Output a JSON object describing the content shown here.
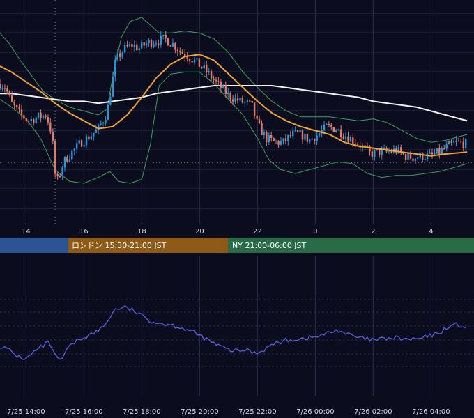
{
  "colors": {
    "background": "#0b0d1f",
    "grid": "#2a2e48",
    "candle_up": "#2f93d8",
    "candle_down": "#e07c68",
    "bollinger": "#3d9f5d",
    "ma_short": "#f0a236",
    "ma_long": "#f2f2f2",
    "oscillator": "#5b61e0",
    "session_tokyo": "#2a5590",
    "session_london": "#8d5a18",
    "session_ny": "#2a6b47",
    "axis_text": "#d6d8e4"
  },
  "icons": [],
  "chart_data": [
    {
      "type": "candlestick",
      "title": "",
      "xlabel": "",
      "ylabel": "",
      "x_tick_labels": [
        "14",
        "16",
        "18",
        "20",
        "22",
        "0",
        "2",
        "4"
      ],
      "x_range_hours": [
        13.1,
        5.25
      ],
      "grid": true,
      "dotted_reference_line": true,
      "close_path_points": [
        [
          13.1,
          0.66
        ],
        [
          13.3,
          0.64
        ],
        [
          13.5,
          0.56
        ],
        [
          13.8,
          0.5
        ],
        [
          14.1,
          0.47
        ],
        [
          14.4,
          0.49
        ],
        [
          14.7,
          0.5
        ],
        [
          14.9,
          0.4
        ],
        [
          15.0,
          0.2
        ],
        [
          15.1,
          0.16
        ],
        [
          15.3,
          0.26
        ],
        [
          15.6,
          0.31
        ],
        [
          15.9,
          0.36
        ],
        [
          16.2,
          0.39
        ],
        [
          16.5,
          0.43
        ],
        [
          16.8,
          0.51
        ],
        [
          16.95,
          0.64
        ],
        [
          17.1,
          0.78
        ],
        [
          17.4,
          0.84
        ],
        [
          17.7,
          0.86
        ],
        [
          17.9,
          0.84
        ],
        [
          18.2,
          0.87
        ],
        [
          18.5,
          0.88
        ],
        [
          18.8,
          0.89
        ],
        [
          19.1,
          0.86
        ],
        [
          19.4,
          0.82
        ],
        [
          19.8,
          0.78
        ],
        [
          20.2,
          0.73
        ],
        [
          20.6,
          0.66
        ],
        [
          21.0,
          0.6
        ],
        [
          21.4,
          0.57
        ],
        [
          21.8,
          0.55
        ],
        [
          22.0,
          0.45
        ],
        [
          22.3,
          0.38
        ],
        [
          22.6,
          0.36
        ],
        [
          22.9,
          0.36
        ],
        [
          23.2,
          0.4
        ],
        [
          23.5,
          0.4
        ],
        [
          23.8,
          0.37
        ],
        [
          0.1,
          0.4
        ],
        [
          0.4,
          0.44
        ],
        [
          0.7,
          0.43
        ],
        [
          1.0,
          0.4
        ],
        [
          1.3,
          0.37
        ],
        [
          1.6,
          0.34
        ],
        [
          1.9,
          0.3
        ],
        [
          2.2,
          0.31
        ],
        [
          2.5,
          0.31
        ],
        [
          2.8,
          0.32
        ],
        [
          3.1,
          0.29
        ],
        [
          3.4,
          0.28
        ],
        [
          3.7,
          0.29
        ],
        [
          4.0,
          0.29
        ],
        [
          4.3,
          0.31
        ],
        [
          4.6,
          0.34
        ],
        [
          4.9,
          0.36
        ],
        [
          5.25,
          0.35
        ]
      ],
      "ma_short_points": [
        [
          13.1,
          0.75
        ],
        [
          13.5,
          0.72
        ],
        [
          14.0,
          0.67
        ],
        [
          14.5,
          0.62
        ],
        [
          15.0,
          0.56
        ],
        [
          15.5,
          0.51
        ],
        [
          16.0,
          0.47
        ],
        [
          16.5,
          0.43
        ],
        [
          17.0,
          0.44
        ],
        [
          17.5,
          0.5
        ],
        [
          18.0,
          0.59
        ],
        [
          18.5,
          0.69
        ],
        [
          19.0,
          0.76
        ],
        [
          19.5,
          0.8
        ],
        [
          20.0,
          0.81
        ],
        [
          20.5,
          0.78
        ],
        [
          21.0,
          0.71
        ],
        [
          21.5,
          0.64
        ],
        [
          22.0,
          0.57
        ],
        [
          22.5,
          0.51
        ],
        [
          23.0,
          0.47
        ],
        [
          23.5,
          0.44
        ],
        [
          0.0,
          0.42
        ],
        [
          0.5,
          0.4
        ],
        [
          1.0,
          0.36
        ],
        [
          1.5,
          0.34
        ],
        [
          2.0,
          0.33
        ],
        [
          2.5,
          0.32
        ],
        [
          3.0,
          0.31
        ],
        [
          3.5,
          0.3
        ],
        [
          4.0,
          0.29
        ],
        [
          4.5,
          0.3
        ],
        [
          5.25,
          0.31
        ]
      ],
      "ma_long_points": [
        [
          13.1,
          0.61
        ],
        [
          13.5,
          0.61
        ],
        [
          14.0,
          0.6
        ],
        [
          14.5,
          0.59
        ],
        [
          15.0,
          0.58
        ],
        [
          15.5,
          0.57
        ],
        [
          16.0,
          0.57
        ],
        [
          16.5,
          0.56
        ],
        [
          17.0,
          0.57
        ],
        [
          17.5,
          0.58
        ],
        [
          18.0,
          0.59
        ],
        [
          18.5,
          0.61
        ],
        [
          19.0,
          0.62
        ],
        [
          19.5,
          0.63
        ],
        [
          20.0,
          0.64
        ],
        [
          20.5,
          0.65
        ],
        [
          21.0,
          0.65
        ],
        [
          21.5,
          0.65
        ],
        [
          22.0,
          0.65
        ],
        [
          22.5,
          0.65
        ],
        [
          23.0,
          0.64
        ],
        [
          23.5,
          0.63
        ],
        [
          0.0,
          0.62
        ],
        [
          0.5,
          0.61
        ],
        [
          1.0,
          0.6
        ],
        [
          1.5,
          0.59
        ],
        [
          2.0,
          0.57
        ],
        [
          2.5,
          0.56
        ],
        [
          3.0,
          0.55
        ],
        [
          3.5,
          0.54
        ],
        [
          4.0,
          0.52
        ],
        [
          4.5,
          0.5
        ],
        [
          5.25,
          0.47
        ]
      ],
      "boll_upper_points": [
        [
          13.1,
          0.92
        ],
        [
          13.4,
          0.87
        ],
        [
          13.8,
          0.78
        ],
        [
          14.2,
          0.7
        ],
        [
          14.6,
          0.62
        ],
        [
          15.0,
          0.58
        ],
        [
          15.5,
          0.54
        ],
        [
          16.0,
          0.52
        ],
        [
          16.5,
          0.5
        ],
        [
          16.8,
          0.53
        ],
        [
          17.0,
          0.7
        ],
        [
          17.3,
          0.9
        ],
        [
          17.6,
          0.98
        ],
        [
          18.0,
          1.0
        ],
        [
          18.3,
          0.96
        ],
        [
          18.6,
          0.92
        ],
        [
          19.0,
          0.92
        ],
        [
          19.5,
          0.93
        ],
        [
          20.0,
          0.92
        ],
        [
          20.5,
          0.89
        ],
        [
          21.0,
          0.82
        ],
        [
          21.5,
          0.72
        ],
        [
          22.0,
          0.64
        ],
        [
          22.5,
          0.57
        ],
        [
          23.0,
          0.52
        ],
        [
          23.5,
          0.49
        ],
        [
          0.0,
          0.49
        ],
        [
          0.5,
          0.49
        ],
        [
          1.0,
          0.48
        ],
        [
          1.5,
          0.47
        ],
        [
          2.0,
          0.48
        ],
        [
          2.5,
          0.46
        ],
        [
          3.0,
          0.42
        ],
        [
          3.5,
          0.38
        ],
        [
          4.0,
          0.36
        ],
        [
          4.5,
          0.37
        ],
        [
          5.25,
          0.4
        ]
      ],
      "boll_lower_points": [
        [
          13.1,
          0.58
        ],
        [
          13.5,
          0.54
        ],
        [
          14.0,
          0.48
        ],
        [
          14.5,
          0.38
        ],
        [
          15.0,
          0.22
        ],
        [
          15.5,
          0.16
        ],
        [
          16.0,
          0.15
        ],
        [
          16.5,
          0.18
        ],
        [
          16.9,
          0.21
        ],
        [
          17.2,
          0.16
        ],
        [
          17.6,
          0.15
        ],
        [
          18.0,
          0.17
        ],
        [
          18.3,
          0.35
        ],
        [
          18.6,
          0.65
        ],
        [
          19.0,
          0.71
        ],
        [
          19.5,
          0.72
        ],
        [
          20.0,
          0.72
        ],
        [
          20.5,
          0.66
        ],
        [
          21.0,
          0.58
        ],
        [
          21.5,
          0.5
        ],
        [
          22.0,
          0.38
        ],
        [
          22.4,
          0.27
        ],
        [
          22.8,
          0.22
        ],
        [
          23.3,
          0.2
        ],
        [
          23.8,
          0.22
        ],
        [
          0.3,
          0.24
        ],
        [
          0.8,
          0.26
        ],
        [
          1.3,
          0.25
        ],
        [
          1.8,
          0.2
        ],
        [
          2.3,
          0.18
        ],
        [
          2.8,
          0.19
        ],
        [
          3.3,
          0.19
        ],
        [
          3.8,
          0.2
        ],
        [
          4.3,
          0.21
        ],
        [
          5.25,
          0.25
        ]
      ]
    },
    {
      "type": "line",
      "title": "",
      "xlabel": "",
      "ylabel": "",
      "x_tick_labels": [
        "7/25 14:00",
        "7/25 16:00",
        "7/25 18:00",
        "7/25 20:00",
        "7/25 22:00",
        "7/26 00:00",
        "7/26 02:00",
        "7/26 04:00"
      ],
      "grid": true,
      "series_points": [
        [
          13.1,
          0.35
        ],
        [
          13.4,
          0.3
        ],
        [
          13.7,
          0.22
        ],
        [
          14.0,
          0.18
        ],
        [
          14.3,
          0.28
        ],
        [
          14.6,
          0.35
        ],
        [
          14.8,
          0.4
        ],
        [
          15.0,
          0.22
        ],
        [
          15.2,
          0.15
        ],
        [
          15.4,
          0.3
        ],
        [
          15.7,
          0.4
        ],
        [
          16.0,
          0.46
        ],
        [
          16.4,
          0.52
        ],
        [
          16.7,
          0.6
        ],
        [
          16.9,
          0.72
        ],
        [
          17.1,
          0.82
        ],
        [
          17.4,
          0.84
        ],
        [
          17.7,
          0.8
        ],
        [
          18.0,
          0.73
        ],
        [
          18.3,
          0.67
        ],
        [
          18.6,
          0.64
        ],
        [
          19.0,
          0.62
        ],
        [
          19.4,
          0.58
        ],
        [
          19.8,
          0.52
        ],
        [
          20.2,
          0.44
        ],
        [
          20.6,
          0.36
        ],
        [
          21.0,
          0.3
        ],
        [
          21.3,
          0.28
        ],
        [
          21.6,
          0.3
        ],
        [
          22.0,
          0.26
        ],
        [
          22.3,
          0.32
        ],
        [
          22.6,
          0.38
        ],
        [
          23.0,
          0.42
        ],
        [
          23.4,
          0.44
        ],
        [
          23.8,
          0.45
        ],
        [
          0.2,
          0.48
        ],
        [
          0.5,
          0.52
        ],
        [
          0.8,
          0.55
        ],
        [
          1.1,
          0.5
        ],
        [
          1.4,
          0.46
        ],
        [
          1.7,
          0.44
        ],
        [
          2.0,
          0.42
        ],
        [
          2.4,
          0.44
        ],
        [
          2.8,
          0.45
        ],
        [
          3.2,
          0.43
        ],
        [
          3.6,
          0.44
        ],
        [
          4.0,
          0.48
        ],
        [
          4.3,
          0.52
        ],
        [
          4.6,
          0.6
        ],
        [
          4.9,
          0.62
        ],
        [
          5.25,
          0.58
        ]
      ]
    }
  ],
  "sessions": [
    {
      "label": ""
    },
    {
      "label": "ロンドン 15:30-21:00 JST"
    },
    {
      "label": "NY 21:00-06:00 JST"
    }
  ]
}
